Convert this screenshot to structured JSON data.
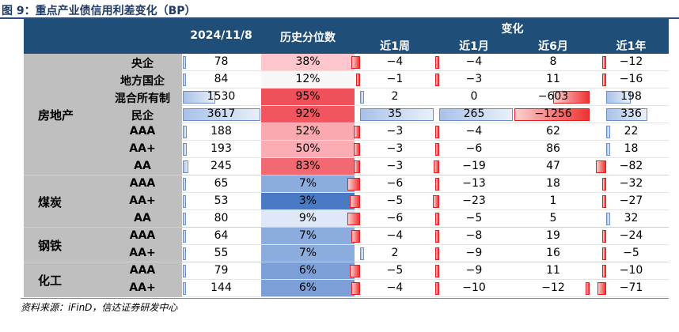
{
  "title": "图 9：重点产业债信用利差变化（BP）",
  "header": {
    "date": "2024/11/8",
    "percentile": "历史分位数",
    "change": "变化",
    "periods": [
      "近1周",
      "近1月",
      "近6月",
      "近1年"
    ]
  },
  "groups": [
    {
      "name": "房地产",
      "first_row": 0,
      "last_row": 6
    },
    {
      "name": "煤炭",
      "first_row": 7,
      "last_row": 9
    },
    {
      "name": "钢铁",
      "first_row": 10,
      "last_row": 11
    },
    {
      "name": "化工",
      "first_row": 12,
      "last_row": 13
    }
  ],
  "rows": [
    {
      "sub": "央企",
      "value": 78,
      "pct": "38%",
      "pct_num": 38,
      "w": -4,
      "m": -4,
      "m6": 8,
      "y": -12
    },
    {
      "sub": "地方国企",
      "value": 84,
      "pct": "12%",
      "pct_num": 12,
      "w": -1,
      "m": -3,
      "m6": 11,
      "y": -16
    },
    {
      "sub": "混合所有制",
      "value": 1530,
      "pct": "95%",
      "pct_num": 95,
      "w": 2,
      "m": 0,
      "m6": -603,
      "y": 198
    },
    {
      "sub": "民企",
      "value": 3617,
      "pct": "92%",
      "pct_num": 92,
      "w": 35,
      "m": 265,
      "m6": -1256,
      "y": 336
    },
    {
      "sub": "AAA",
      "value": 188,
      "pct": "52%",
      "pct_num": 52,
      "w": -3,
      "m": -4,
      "m6": 62,
      "y": 22
    },
    {
      "sub": "AA+",
      "value": 193,
      "pct": "50%",
      "pct_num": 50,
      "w": -3,
      "m": -6,
      "m6": 86,
      "y": 18
    },
    {
      "sub": "AA",
      "value": 245,
      "pct": "83%",
      "pct_num": 83,
      "w": -3,
      "m": -19,
      "m6": 47,
      "y": -82
    },
    {
      "sub": "AAA",
      "value": 65,
      "pct": "7%",
      "pct_num": 7,
      "w": -6,
      "m": -13,
      "m6": 18,
      "y": -32
    },
    {
      "sub": "AA+",
      "value": 53,
      "pct": "3%",
      "pct_num": 3,
      "w": -5,
      "m": -23,
      "m6": 1,
      "y": -27
    },
    {
      "sub": "AA",
      "value": 80,
      "pct": "9%",
      "pct_num": 9,
      "w": -6,
      "m": -5,
      "m6": 5,
      "y": 32
    },
    {
      "sub": "AAA",
      "value": 64,
      "pct": "7%",
      "pct_num": 7,
      "w": -4,
      "m": -8,
      "m6": 19,
      "y": -24
    },
    {
      "sub": "AA+",
      "value": 55,
      "pct": "7%",
      "pct_num": 7,
      "w": 2,
      "m": -9,
      "m6": 16,
      "y": -5
    },
    {
      "sub": "AAA",
      "value": 79,
      "pct": "6%",
      "pct_num": 6,
      "w": -5,
      "m": -9,
      "m6": 11,
      "y": -10
    },
    {
      "sub": "AA+",
      "value": 144,
      "pct": "6%",
      "pct_num": 6,
      "w": -4,
      "m": -10,
      "m6": -12,
      "y": -71
    }
  ],
  "colors": {
    "header_bg": "#1f4e79",
    "row_label_bg": "#bfbfbf",
    "bar_positive": "#a9c1e8",
    "bar_negative": "#f03232",
    "pct_high": "#f0505a",
    "pct_low": "#4a79c4"
  },
  "footer": "资料来源：iFinD，信达证券研发中心"
}
